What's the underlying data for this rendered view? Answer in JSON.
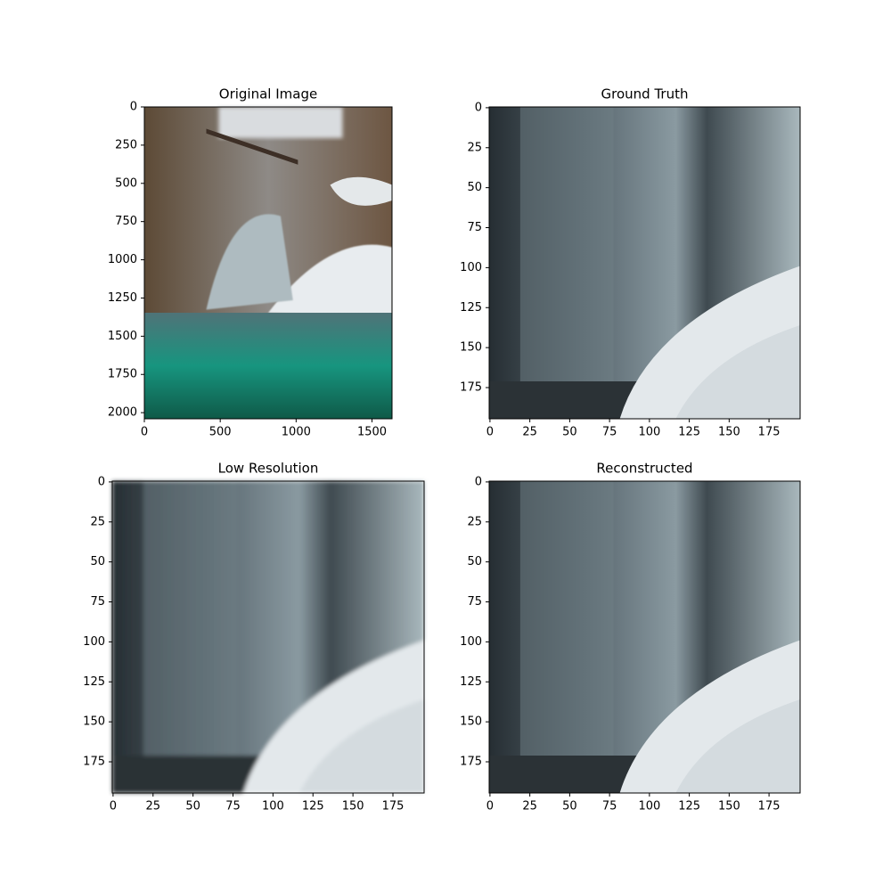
{
  "chart_data": [
    {
      "type": "image",
      "title": "Original Image",
      "xlim": [
        0,
        1632
      ],
      "ylim": [
        2040,
        0
      ],
      "xticks": [
        0,
        500,
        1000,
        1500
      ],
      "yticks": [
        0,
        250,
        500,
        750,
        1000,
        1250,
        1500,
        1750,
        2000
      ]
    },
    {
      "type": "image",
      "title": "Ground Truth",
      "xlim": [
        -0.5,
        194.5
      ],
      "ylim": [
        194.5,
        -0.5
      ],
      "xticks": [
        0,
        25,
        50,
        75,
        100,
        125,
        150,
        175
      ],
      "yticks": [
        0,
        25,
        50,
        75,
        100,
        125,
        150,
        175
      ]
    },
    {
      "type": "image",
      "title": "Low Resolution",
      "xlim": [
        -0.5,
        194.5
      ],
      "ylim": [
        194.5,
        -0.5
      ],
      "xticks": [
        0,
        25,
        50,
        75,
        100,
        125,
        150,
        175
      ],
      "yticks": [
        0,
        25,
        50,
        75,
        100,
        125,
        150,
        175
      ]
    },
    {
      "type": "image",
      "title": "Reconstructed",
      "xlim": [
        -0.5,
        194.5
      ],
      "ylim": [
        194.5,
        -0.5
      ],
      "xticks": [
        0,
        25,
        50,
        75,
        100,
        125,
        150,
        175
      ],
      "yticks": [
        0,
        25,
        50,
        75,
        100,
        125,
        150,
        175
      ]
    }
  ]
}
